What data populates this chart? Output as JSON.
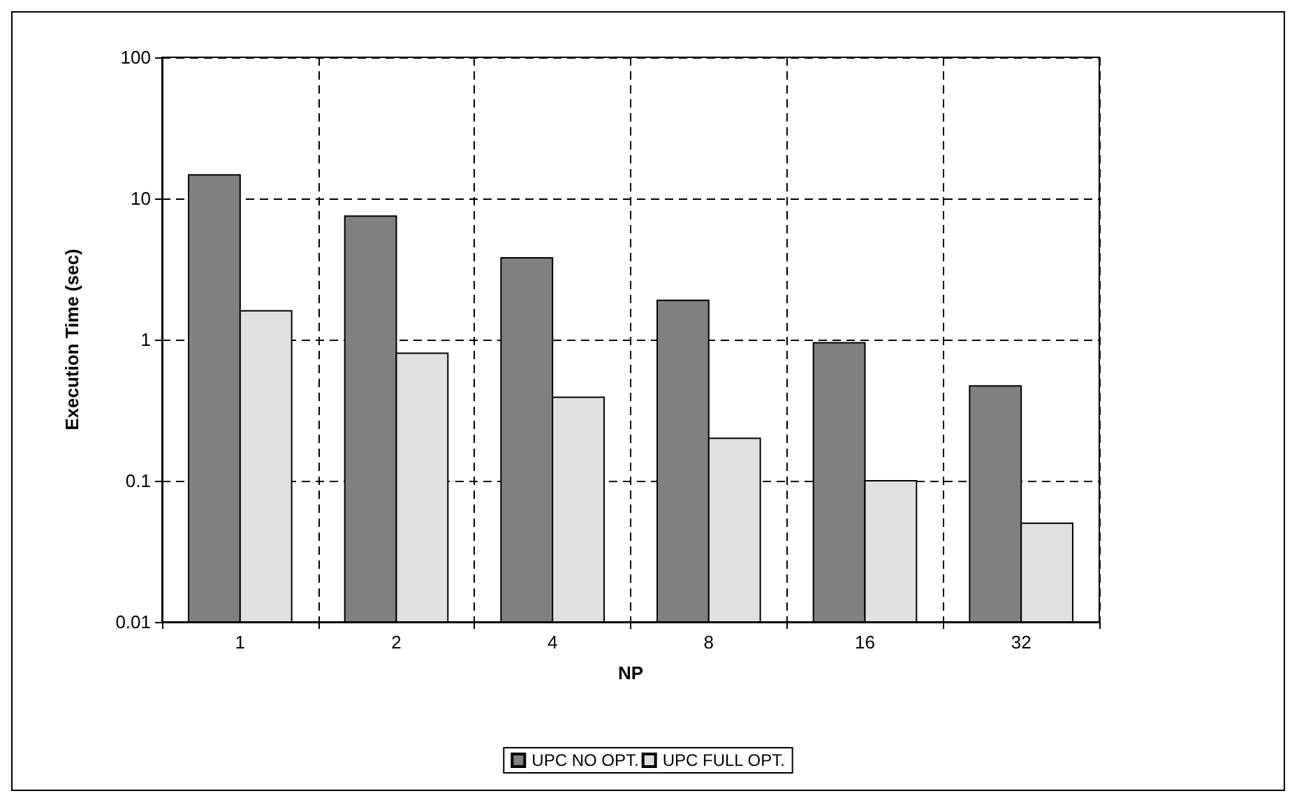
{
  "chart_data": {
    "type": "bar",
    "xlabel": "NP",
    "ylabel": "Execution Time (sec)",
    "categories": [
      "1",
      "2",
      "4",
      "8",
      "16",
      "32"
    ],
    "series": [
      {
        "name": "UPC NO OPT.",
        "color": "#808080",
        "values": [
          14.7,
          7.5,
          3.8,
          1.9,
          0.95,
          0.47
        ]
      },
      {
        "name": "UPC FULL OPT.",
        "color": "#e0e0e0",
        "values": [
          1.6,
          0.8,
          0.39,
          0.2,
          0.1,
          0.05
        ]
      }
    ],
    "log": true,
    "ylim": [
      0.01,
      100
    ],
    "yticks": [
      0.01,
      0.1,
      1,
      10,
      100
    ],
    "grid": true,
    "legend": "bottom"
  }
}
